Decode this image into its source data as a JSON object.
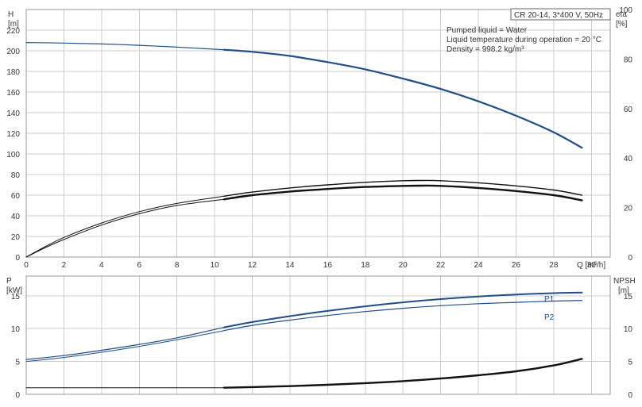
{
  "header": {
    "model": "CR 20-14, 3*400 V, 50Hz",
    "info_lines": [
      "Pumped liquid = Water",
      "Liquid temperature during operation = 20 °C",
      "Density = 998.2 kg/m³"
    ]
  },
  "colors": {
    "blue": "#1f4e8c",
    "black": "#111111",
    "grid": "#cccccc",
    "frame": "#999999"
  },
  "chart_data": [
    {
      "type": "line",
      "panel": "top",
      "left_axis_label": [
        "H",
        "[m]"
      ],
      "right_axis_label": [
        "eta",
        "[%]"
      ],
      "xlabel": "Q [m³/h]",
      "xlim": [
        0,
        31
      ],
      "ylim": [
        0,
        240
      ],
      "right_ylim": [
        0,
        100
      ],
      "x_ticks": [
        0,
        2,
        4,
        6,
        8,
        10,
        12,
        14,
        16,
        18,
        20,
        22,
        24,
        26,
        28,
        30
      ],
      "y_ticks": [
        0,
        20,
        40,
        60,
        80,
        100,
        120,
        140,
        160,
        180,
        200,
        220
      ],
      "right_ticks": [
        0,
        20,
        40,
        60,
        80,
        100
      ],
      "series": [
        {
          "id": "head_thin",
          "axis": "left",
          "color": "#1f4e8c",
          "width": 1.2,
          "points": [
            [
              0,
              208
            ],
            [
              2,
              207.5
            ],
            [
              4,
              206.6
            ],
            [
              6,
              205.3
            ],
            [
              8,
              203.5
            ],
            [
              10.5,
              201
            ]
          ]
        },
        {
          "id": "head",
          "axis": "left",
          "color": "#1f4e8c",
          "width": 2.2,
          "points": [
            [
              10.5,
              201
            ],
            [
              12,
              199
            ],
            [
              14,
              195
            ],
            [
              16,
              189
            ],
            [
              18,
              182
            ],
            [
              20,
              173
            ],
            [
              22,
              163
            ],
            [
              24,
              151
            ],
            [
              26,
              137
            ],
            [
              28,
              121
            ],
            [
              29.5,
              106
            ]
          ]
        },
        {
          "id": "eta_outer_thin",
          "axis": "left",
          "color": "#111111",
          "width": 1,
          "points": [
            [
              0,
              0
            ],
            [
              1,
              10
            ],
            [
              2,
              19
            ],
            [
              4,
              33
            ],
            [
              6,
              44
            ],
            [
              8,
              52
            ],
            [
              10.5,
              59
            ]
          ]
        },
        {
          "id": "eta_outer",
          "axis": "left",
          "color": "#111111",
          "width": 1.4,
          "points": [
            [
              10.5,
              59
            ],
            [
              12,
              63
            ],
            [
              14,
              67
            ],
            [
              16,
              70
            ],
            [
              18,
              72.5
            ],
            [
              20,
              74
            ],
            [
              21,
              74.2
            ],
            [
              22,
              74
            ],
            [
              24,
              72
            ],
            [
              26,
              69
            ],
            [
              28,
              65
            ],
            [
              29.5,
              60
            ]
          ]
        },
        {
          "id": "eta_inner_thin",
          "axis": "left",
          "color": "#111111",
          "width": 1,
          "points": [
            [
              0,
              0
            ],
            [
              1,
              9
            ],
            [
              2,
              17
            ],
            [
              4,
              31
            ],
            [
              6,
              42
            ],
            [
              8,
              50
            ],
            [
              10.5,
              56
            ]
          ]
        },
        {
          "id": "eta_inner",
          "axis": "left",
          "color": "#111111",
          "width": 2.4,
          "points": [
            [
              10.5,
              56
            ],
            [
              12,
              60
            ],
            [
              14,
              63.5
            ],
            [
              16,
              66
            ],
            [
              18,
              68
            ],
            [
              20,
              69
            ],
            [
              21,
              69.2
            ],
            [
              22,
              69
            ],
            [
              24,
              67
            ],
            [
              26,
              64
            ],
            [
              28,
              60
            ],
            [
              29.5,
              55
            ]
          ]
        }
      ]
    },
    {
      "type": "line",
      "panel": "bottom",
      "left_axis_label": [
        "P",
        "[kW]"
      ],
      "right_axis_label": [
        "NPSH",
        "[m]"
      ],
      "xlim": [
        0,
        31
      ],
      "ylim": [
        0,
        18
      ],
      "right_ylim": [
        0,
        18
      ],
      "x_ticks": [
        0,
        2,
        4,
        6,
        8,
        10,
        12,
        14,
        16,
        18,
        20,
        22,
        24,
        26,
        28,
        30
      ],
      "y_ticks": [
        0,
        5,
        10,
        15
      ],
      "right_ticks": [
        0,
        5,
        10,
        15
      ],
      "series": [
        {
          "id": "p1_thin",
          "axis": "left",
          "color": "#1f4e8c",
          "width": 1.2,
          "points": [
            [
              0,
              5.3
            ],
            [
              2,
              5.9
            ],
            [
              4,
              6.7
            ],
            [
              6,
              7.6
            ],
            [
              8,
              8.6
            ],
            [
              10.5,
              10.2
            ]
          ]
        },
        {
          "id": "p1",
          "name": "P1",
          "axis": "left",
          "color": "#1f4e8c",
          "width": 2,
          "points": [
            [
              10.5,
              10.2
            ],
            [
              12,
              11.0
            ],
            [
              14,
              11.9
            ],
            [
              16,
              12.7
            ],
            [
              18,
              13.4
            ],
            [
              20,
              14.0
            ],
            [
              22,
              14.5
            ],
            [
              24,
              14.9
            ],
            [
              26,
              15.2
            ],
            [
              28,
              15.4
            ],
            [
              29.5,
              15.5
            ]
          ]
        },
        {
          "id": "p2_thin",
          "axis": "left",
          "color": "#1f4e8c",
          "width": 1,
          "points": [
            [
              0,
              5.0
            ],
            [
              2,
              5.6
            ],
            [
              4,
              6.4
            ],
            [
              6,
              7.3
            ],
            [
              8,
              8.3
            ],
            [
              10.5,
              9.7
            ]
          ]
        },
        {
          "id": "p2",
          "name": "P2",
          "axis": "left",
          "color": "#1f4e8c",
          "width": 1.2,
          "points": [
            [
              10.5,
              9.7
            ],
            [
              12,
              10.5
            ],
            [
              14,
              11.3
            ],
            [
              16,
              12.0
            ],
            [
              18,
              12.6
            ],
            [
              20,
              13.1
            ],
            [
              22,
              13.5
            ],
            [
              24,
              13.8
            ],
            [
              26,
              14.0
            ],
            [
              28,
              14.2
            ],
            [
              29.5,
              14.3
            ]
          ]
        },
        {
          "id": "npsh_thin",
          "axis": "left",
          "color": "#111111",
          "width": 1,
          "points": [
            [
              0,
              1.0
            ],
            [
              10.5,
              1.0
            ]
          ]
        },
        {
          "id": "npsh",
          "axis": "left",
          "color": "#111111",
          "width": 2.4,
          "points": [
            [
              10.5,
              1.0
            ],
            [
              12,
              1.1
            ],
            [
              14,
              1.25
            ],
            [
              16,
              1.45
            ],
            [
              18,
              1.7
            ],
            [
              20,
              2.0
            ],
            [
              22,
              2.4
            ],
            [
              24,
              2.9
            ],
            [
              26,
              3.5
            ],
            [
              28,
              4.4
            ],
            [
              29.5,
              5.4
            ]
          ]
        }
      ]
    }
  ]
}
